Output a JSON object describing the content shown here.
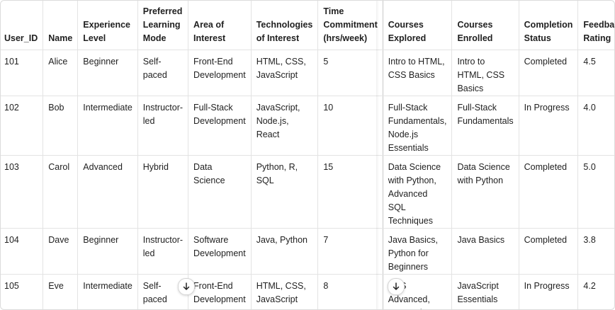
{
  "columns": [
    "User_ID",
    "Name",
    "Experience Level",
    "Preferred Learning Mode",
    "Area of Interest",
    "Technologies of Interest",
    "Time Commitment (hrs/week)",
    "Courses Explored",
    "Courses Enrolled",
    "Completion Status",
    "Feedback Rating"
  ],
  "rows": [
    [
      "101",
      "Alice",
      "Beginner",
      "Self-paced",
      "Front-End Development",
      "HTML, CSS, JavaScript",
      "5",
      "Intro to HTML, CSS Basics",
      "Intro to HTML, CSS Basics",
      "Completed",
      "4.5"
    ],
    [
      "102",
      "Bob",
      "Intermediate",
      "Instructor-led",
      "Full-Stack Development",
      "JavaScript, Node.js, React",
      "10",
      "Full-Stack Fundamentals, Node.js Essentials",
      "Full-Stack Fundamentals",
      "In Progress",
      "4.0"
    ],
    [
      "103",
      "Carol",
      "Advanced",
      "Hybrid",
      "Data Science",
      "Python, R, SQL",
      "15",
      "Data Science with Python, Advanced SQL Techniques",
      "Data Science with Python",
      "Completed",
      "5.0"
    ],
    [
      "104",
      "Dave",
      "Beginner",
      "Instructor-led",
      "Software Development",
      "Java, Python",
      "7",
      "Java Basics, Python for Beginners",
      "Java Basics",
      "Completed",
      "3.8"
    ],
    [
      "105",
      "Eve",
      "Intermediate",
      "Self-paced",
      "Front-End Development",
      "HTML, CSS, JavaScript",
      "8",
      "CSS Advanced, JavaScript",
      "JavaScript Essentials",
      "In Progress",
      "4.2"
    ]
  ],
  "icons": {
    "scroll_down_left": "arrow-down-icon",
    "scroll_down_right": "arrow-down-icon"
  }
}
